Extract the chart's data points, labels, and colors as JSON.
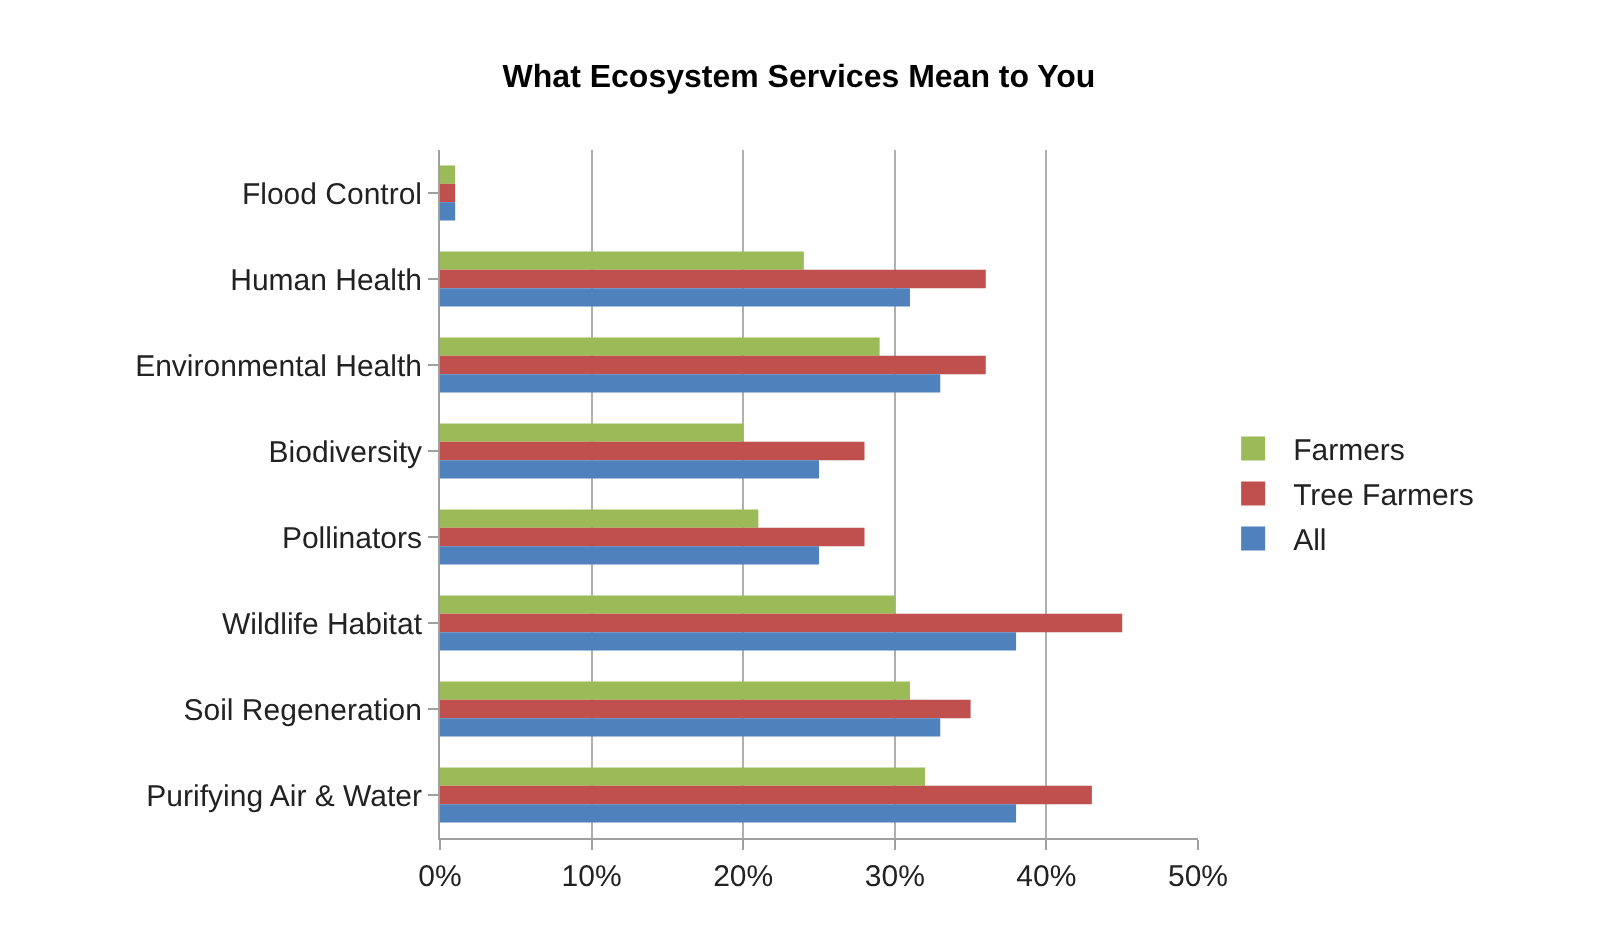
{
  "chart_data": {
    "type": "bar",
    "orientation": "horizontal",
    "title": "What Ecosystem Services Mean to You",
    "categories": [
      "Flood Control",
      "Human Health",
      "Environmental Health",
      "Biodiversity",
      "Pollinators",
      "Wildlife Habitat",
      "Soil Regeneration",
      "Purifying Air & Water"
    ],
    "series": [
      {
        "name": "Farmers",
        "color": "#9bbb59",
        "values": [
          1,
          24,
          29,
          20,
          21,
          30,
          31,
          32
        ]
      },
      {
        "name": "Tree Farmers",
        "color": "#c0504d",
        "values": [
          1,
          36,
          36,
          28,
          28,
          45,
          35,
          43
        ]
      },
      {
        "name": "All",
        "color": "#4f81bd",
        "values": [
          1,
          31,
          33,
          25,
          25,
          38,
          33,
          38
        ]
      }
    ],
    "xlim": [
      0,
      50
    ],
    "xticks": [
      {
        "value": 0,
        "label": "0%"
      },
      {
        "value": 10,
        "label": "10%"
      },
      {
        "value": 20,
        "label": "20%"
      },
      {
        "value": 30,
        "label": "30%"
      },
      {
        "value": 40,
        "label": "40%"
      },
      {
        "value": 50,
        "label": "50%"
      }
    ],
    "grid": "x",
    "legend": "right"
  }
}
